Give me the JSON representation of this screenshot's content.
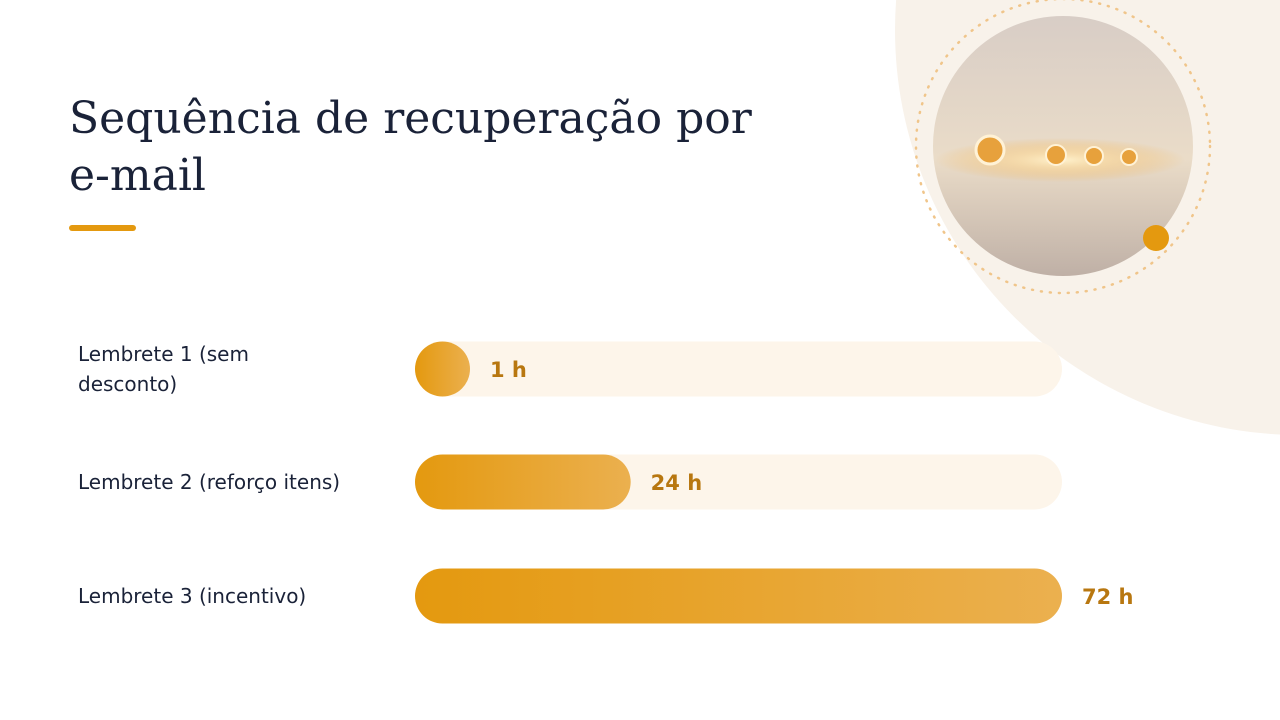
{
  "chart_data": {
    "type": "bar",
    "orientation": "horizontal",
    "title": "Sequência de recuperação por e-mail",
    "categories": [
      "Lembrete 1 (sem desconto)",
      "Lembrete 2 (reforço itens)",
      "Lembrete 3 (incentivo)"
    ],
    "values": [
      1,
      24,
      72
    ],
    "value_labels": [
      "1 h",
      "24 h",
      "72 h"
    ],
    "color": "#e4990f",
    "xlim": [
      0,
      72
    ]
  }
}
